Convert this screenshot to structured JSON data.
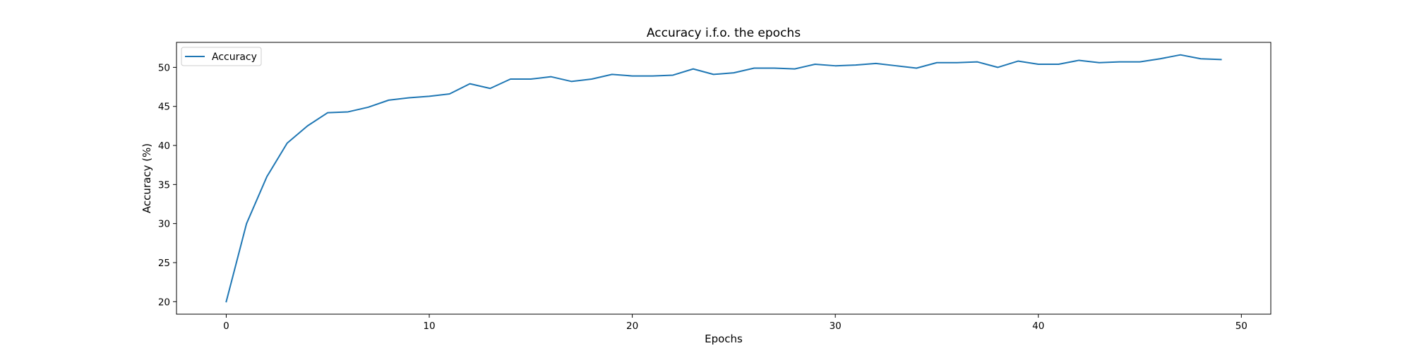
{
  "chart_data": {
    "type": "line",
    "title": "Accuracy i.f.o. the epochs",
    "xlabel": "Epochs",
    "ylabel": "Accuracy (%)",
    "xlim": [
      -2.45,
      51.45
    ],
    "ylim": [
      18.4,
      53.2
    ],
    "xticks": [
      0,
      10,
      20,
      30,
      40,
      50
    ],
    "yticks": [
      20,
      25,
      30,
      35,
      40,
      45,
      50
    ],
    "grid": false,
    "legend_position": "top-left",
    "series": [
      {
        "name": "Accuracy",
        "color": "#1f77b4",
        "x": [
          0,
          1,
          2,
          3,
          4,
          5,
          6,
          7,
          8,
          9,
          10,
          11,
          12,
          13,
          14,
          15,
          16,
          17,
          18,
          19,
          20,
          21,
          22,
          23,
          24,
          25,
          26,
          27,
          28,
          29,
          30,
          31,
          32,
          33,
          34,
          35,
          36,
          37,
          38,
          39,
          40,
          41,
          42,
          43,
          44,
          45,
          46,
          47,
          48,
          49
        ],
        "y": [
          20.0,
          30.0,
          36.0,
          40.3,
          42.5,
          44.2,
          44.3,
          44.9,
          45.8,
          46.1,
          46.3,
          46.6,
          47.9,
          47.3,
          48.5,
          48.5,
          48.8,
          48.2,
          48.5,
          49.1,
          48.9,
          48.9,
          49.0,
          49.8,
          49.1,
          49.3,
          49.9,
          49.9,
          49.8,
          50.4,
          50.2,
          50.3,
          50.5,
          50.2,
          49.9,
          50.6,
          50.6,
          50.7,
          50.0,
          50.8,
          50.4,
          50.4,
          50.9,
          50.6,
          50.7,
          50.7,
          51.1,
          51.6,
          51.1,
          51.0
        ]
      }
    ]
  }
}
